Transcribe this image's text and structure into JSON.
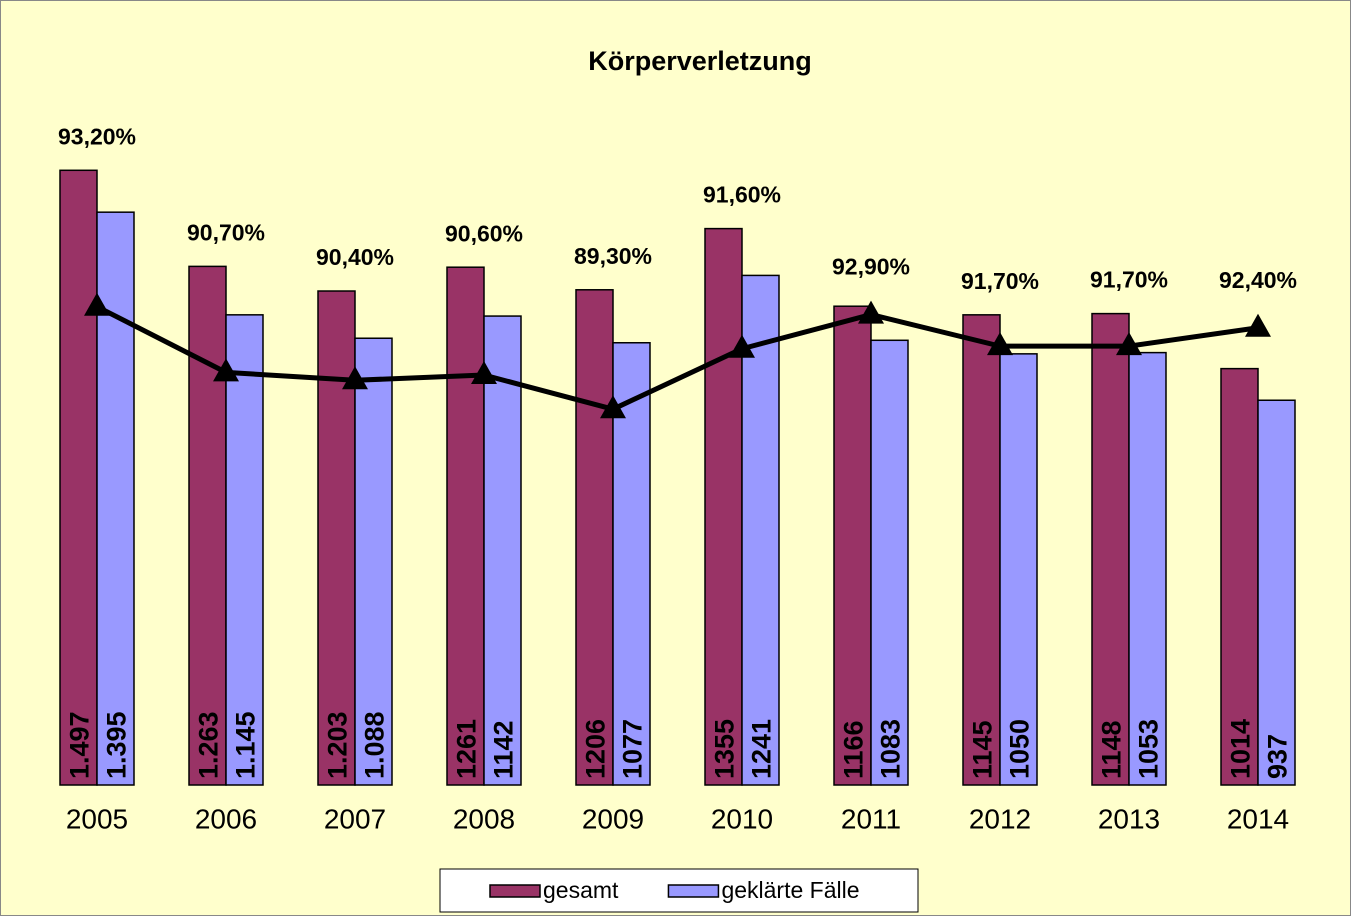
{
  "chart_data": {
    "type": "bar_line",
    "title": "Körperverletzung",
    "categories": [
      "2005",
      "2006",
      "2007",
      "2008",
      "2009",
      "2010",
      "2011",
      "2012",
      "2013",
      "2014"
    ],
    "series": [
      {
        "name": "gesamt",
        "color": "#993366",
        "values": [
          1497,
          1263,
          1203,
          1261,
          1206,
          1355,
          1166,
          1145,
          1148,
          1014
        ],
        "value_labels": [
          "1.497",
          "1.263",
          "1.203",
          "1261",
          "1206",
          "1355",
          "1166",
          "1145",
          "1148",
          "1014"
        ]
      },
      {
        "name": "geklärte Fälle",
        "color": "#9999ff",
        "values": [
          1395,
          1145,
          1088,
          1142,
          1077,
          1241,
          1083,
          1050,
          1053,
          937
        ],
        "value_labels": [
          "1.395",
          "1.145",
          "1.088",
          "1142",
          "1077",
          "1241",
          "1083",
          "1050",
          "1053",
          "937"
        ]
      },
      {
        "axis": "y2",
        "color": "#000000",
        "values": [
          93.2,
          90.7,
          90.4,
          90.6,
          89.3,
          91.6,
          92.9,
          91.7,
          91.7,
          92.4
        ],
        "value_labels": [
          "93,20%",
          "90,70%",
          "90,40%",
          "90,60%",
          "89,30%",
          "91,60%",
          "92,90%",
          "91,70%",
          "91,70%",
          "92,40%"
        ]
      }
    ],
    "ylim": [
      0,
      1600
    ],
    "y2lim": [
      75,
      100
    ],
    "legend": "bottom",
    "background": "#ffffcc"
  }
}
